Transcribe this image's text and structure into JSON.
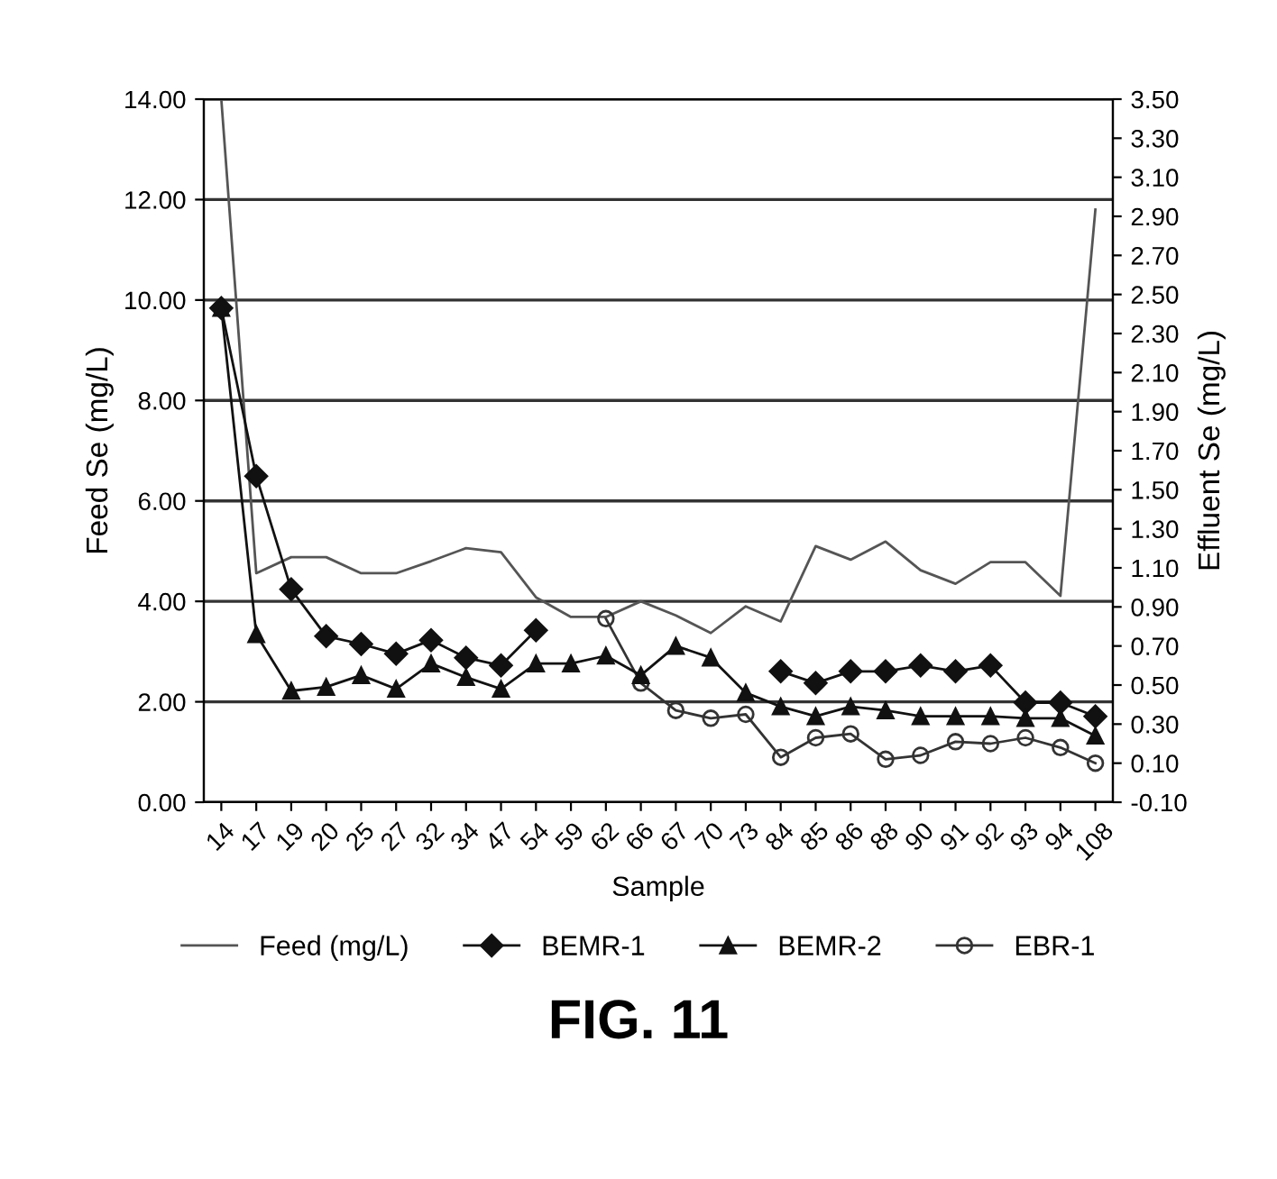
{
  "chart_data": {
    "type": "line",
    "xlabel": "Sample",
    "ylabel": "Feed Se (mg/L)",
    "y2label": "Effluent Se (mg/L)",
    "categories": [
      "14",
      "17",
      "19",
      "20",
      "25",
      "27",
      "32",
      "34",
      "47",
      "54",
      "59",
      "62",
      "66",
      "67",
      "70",
      "73",
      "84",
      "85",
      "86",
      "88",
      "90",
      "91",
      "92",
      "93",
      "94",
      "108"
    ],
    "series": [
      {
        "name": "Feed (mg/L)",
        "color": "#555555",
        "marker": "none",
        "values": [
          14.0,
          4.56,
          4.88,
          4.88,
          4.56,
          4.56,
          4.8,
          5.06,
          4.98,
          4.08,
          3.69,
          3.69,
          4.0,
          3.72,
          3.37,
          3.9,
          3.6,
          5.1,
          4.83,
          5.19,
          4.62,
          4.35,
          4.78,
          4.78,
          4.11,
          11.8
        ]
      },
      {
        "name": "BEMR-1",
        "color": "#111111",
        "marker": "diamond",
        "axis": "y2",
        "values": [
          2.43,
          1.57,
          0.99,
          0.75,
          0.71,
          0.66,
          0.73,
          0.64,
          0.6,
          0.78,
          null,
          null,
          null,
          null,
          null,
          null,
          0.57,
          0.51,
          0.57,
          0.57,
          0.6,
          0.57,
          0.6,
          0.41,
          0.41,
          0.34
        ]
      },
      {
        "name": "BEMR-2",
        "color": "#111111",
        "marker": "triangle",
        "axis": "y2",
        "values": [
          2.43,
          0.76,
          0.47,
          0.49,
          0.55,
          0.48,
          0.61,
          0.54,
          0.48,
          0.61,
          0.61,
          0.65,
          0.55,
          0.7,
          0.64,
          0.46,
          0.39,
          0.34,
          0.39,
          0.37,
          0.34,
          0.34,
          0.34,
          0.33,
          0.33,
          0.24
        ]
      },
      {
        "name": "EBR-1",
        "color": "#333333",
        "marker": "circle",
        "axis": "y2",
        "values": [
          null,
          null,
          null,
          null,
          null,
          null,
          null,
          null,
          null,
          null,
          null,
          0.84,
          0.51,
          0.37,
          0.33,
          0.35,
          0.13,
          0.23,
          0.25,
          0.12,
          0.14,
          0.21,
          0.2,
          0.23,
          0.18,
          0.1
        ]
      }
    ],
    "ylim": [
      0,
      14
    ],
    "yticks": [
      {
        "value": 0,
        "label": "0.00"
      },
      {
        "value": 2,
        "label": "2.00"
      },
      {
        "value": 4,
        "label": "4.00"
      },
      {
        "value": 6,
        "label": "6.00"
      },
      {
        "value": 8,
        "label": "8.00"
      },
      {
        "value": 10,
        "label": "10.00"
      },
      {
        "value": 12,
        "label": "12.00"
      },
      {
        "value": 14,
        "label": "14.00"
      }
    ],
    "y2lim": [
      -0.1,
      3.5
    ],
    "y2ticks": [
      {
        "value": -0.1,
        "label": "-0.10"
      },
      {
        "value": 0.1,
        "label": "0.10"
      },
      {
        "value": 0.3,
        "label": "0.30"
      },
      {
        "value": 0.5,
        "label": "0.50"
      },
      {
        "value": 0.7,
        "label": "0.70"
      },
      {
        "value": 0.9,
        "label": "0.90"
      },
      {
        "value": 1.1,
        "label": "1.10"
      },
      {
        "value": 1.3,
        "label": "1.30"
      },
      {
        "value": 1.5,
        "label": "1.50"
      },
      {
        "value": 1.7,
        "label": "1.70"
      },
      {
        "value": 1.9,
        "label": "1.90"
      },
      {
        "value": 2.1,
        "label": "2.10"
      },
      {
        "value": 2.3,
        "label": "2.30"
      },
      {
        "value": 2.5,
        "label": "2.50"
      },
      {
        "value": 2.7,
        "label": "2.70"
      },
      {
        "value": 2.9,
        "label": "2.90"
      },
      {
        "value": 3.1,
        "label": "3.10"
      },
      {
        "value": 3.3,
        "label": "3.30"
      },
      {
        "value": 3.5,
        "label": "3.50"
      }
    ],
    "grid": "y",
    "legend": "bottom",
    "line_style": "solid",
    "annotations": [
      "FIG. 11"
    ]
  }
}
